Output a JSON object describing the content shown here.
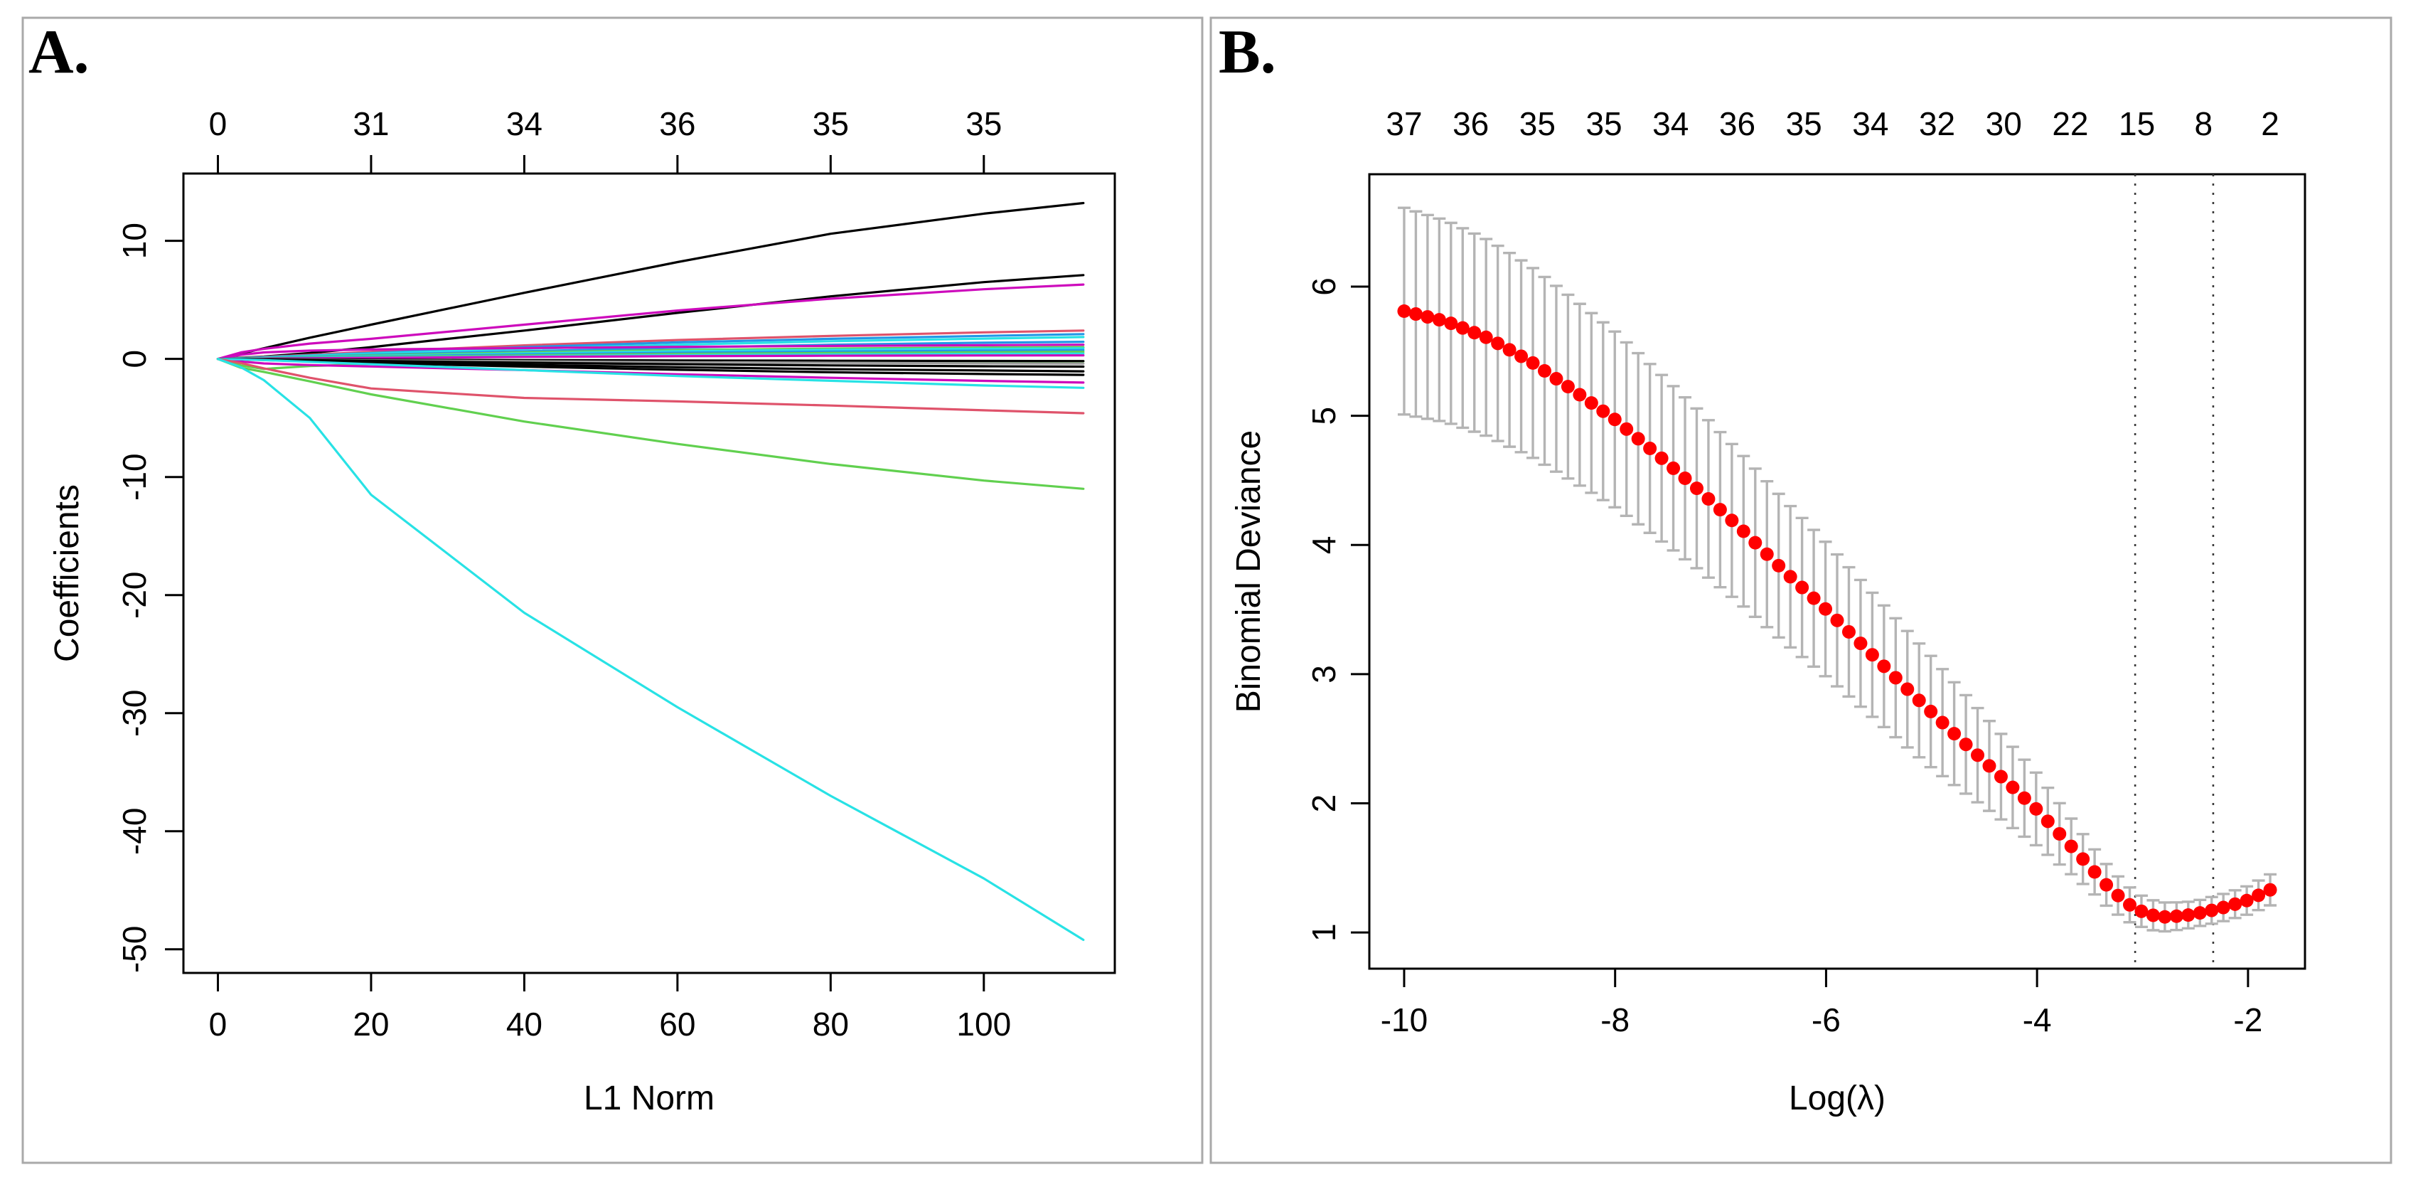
{
  "figure": {
    "background": "#ffffff",
    "panel_border_color": "#a9a9a9",
    "panels": [
      {
        "label": "A."
      },
      {
        "label": "B."
      }
    ]
  },
  "palette": {
    "black": "#000000",
    "salmon": "#DF536B",
    "green": "#61D04F",
    "blue": "#2297E6",
    "cyan": "#28E2E5",
    "magenta": "#CD0BBC",
    "gray": "#9E9E9E",
    "axis": "#000000",
    "errorbar": "#B4B4B4",
    "cv_dot": "#FF0000",
    "dotted_line": "#3a3a3a"
  },
  "chart_data": [
    {
      "type": "line",
      "panel": "A",
      "title": "",
      "xlabel": "L1 Norm",
      "ylabel": "Coefficients",
      "xlim": [
        -4.5,
        117.1
      ],
      "ylim": [
        -52.0,
        15.7
      ],
      "x_ticks": [
        0,
        20,
        40,
        60,
        80,
        100
      ],
      "y_ticks": [
        10,
        0,
        -10,
        -20,
        -30,
        -40,
        -50
      ],
      "top_axis_labels": [
        "0",
        "31",
        "34",
        "36",
        "35",
        "35"
      ],
      "top_axis_positions": [
        0,
        20,
        40,
        60,
        80,
        100
      ],
      "grid": false,
      "x_anchors": [
        0,
        3,
        6,
        12,
        20,
        40,
        60,
        80,
        100,
        113
      ],
      "series": [
        {
          "name": "coef-1",
          "color": "black",
          "values": [
            0,
            0.45,
            0.9,
            1.8,
            2.9,
            5.6,
            8.2,
            10.6,
            12.3,
            13.2
          ]
        },
        {
          "name": "coef-2",
          "color": "black",
          "values": [
            0,
            0.1,
            0.2,
            0.5,
            1.0,
            2.4,
            3.9,
            5.3,
            6.5,
            7.1
          ]
        },
        {
          "name": "coef-3",
          "color": "magenta",
          "values": [
            0,
            0.55,
            0.85,
            1.3,
            1.7,
            2.9,
            4.1,
            5.1,
            5.9,
            6.3
          ]
        },
        {
          "name": "coef-4",
          "color": "salmon",
          "values": [
            0,
            0.08,
            0.18,
            0.35,
            0.6,
            1.15,
            1.6,
            1.95,
            2.25,
            2.4
          ]
        },
        {
          "name": "coef-5",
          "color": "blue",
          "values": [
            0,
            0.06,
            0.14,
            0.3,
            0.5,
            1.0,
            1.4,
            1.7,
            1.95,
            2.1
          ]
        },
        {
          "name": "coef-6",
          "color": "cyan",
          "values": [
            0,
            0.05,
            0.12,
            0.26,
            0.45,
            0.85,
            1.2,
            1.5,
            1.72,
            1.85
          ]
        },
        {
          "name": "coef-7",
          "color": "blue",
          "values": [
            0,
            0.04,
            0.1,
            0.2,
            0.35,
            0.65,
            0.95,
            1.2,
            1.37,
            1.45
          ]
        },
        {
          "name": "coef-8",
          "color": "magenta",
          "values": [
            0,
            0.35,
            0.55,
            0.7,
            0.8,
            0.92,
            1.02,
            1.1,
            1.16,
            1.2
          ]
        },
        {
          "name": "coef-9",
          "color": "green",
          "values": [
            0,
            0.03,
            0.08,
            0.17,
            0.3,
            0.55,
            0.75,
            0.88,
            0.96,
            1.0
          ]
        },
        {
          "name": "coef-10",
          "color": "cyan",
          "values": [
            0,
            0.02,
            0.06,
            0.14,
            0.25,
            0.47,
            0.65,
            0.78,
            0.86,
            0.9
          ]
        },
        {
          "name": "coef-11",
          "color": "blue",
          "values": [
            0,
            0.02,
            0.05,
            0.12,
            0.2,
            0.38,
            0.52,
            0.62,
            0.7,
            0.75
          ]
        },
        {
          "name": "coef-12",
          "color": "green",
          "values": [
            0,
            0.01,
            0.04,
            0.09,
            0.16,
            0.3,
            0.42,
            0.5,
            0.56,
            0.6
          ]
        },
        {
          "name": "coef-13",
          "color": "cyan",
          "values": [
            0,
            0.01,
            0.03,
            0.07,
            0.12,
            0.23,
            0.32,
            0.38,
            0.43,
            0.45
          ]
        },
        {
          "name": "coef-14",
          "color": "magenta",
          "values": [
            0,
            0,
            0.02,
            0.05,
            0.09,
            0.17,
            0.23,
            0.27,
            0.29,
            0.3
          ]
        },
        {
          "name": "coef-15",
          "color": "green",
          "values": [
            0,
            -0.55,
            -0.85,
            -0.6,
            -0.45,
            -0.3,
            -0.25,
            -0.22,
            -0.21,
            -0.2
          ]
        },
        {
          "name": "coef-16",
          "color": "black",
          "values": [
            0,
            0,
            -0.01,
            -0.03,
            -0.06,
            -0.1,
            -0.13,
            -0.15,
            -0.17,
            -0.18
          ]
        },
        {
          "name": "coef-17",
          "color": "gray",
          "values": [
            0,
            -0.01,
            -0.03,
            -0.07,
            -0.12,
            -0.2,
            -0.28,
            -0.33,
            -0.37,
            -0.4
          ]
        },
        {
          "name": "coef-18",
          "color": "black",
          "values": [
            0,
            -0.02,
            -0.05,
            -0.1,
            -0.17,
            -0.32,
            -0.45,
            -0.55,
            -0.62,
            -0.65
          ]
        },
        {
          "name": "coef-19",
          "color": "black",
          "values": [
            0,
            -0.03,
            -0.07,
            -0.15,
            -0.26,
            -0.5,
            -0.7,
            -0.87,
            -0.98,
            -1.05
          ]
        },
        {
          "name": "coef-20",
          "color": "black",
          "values": [
            0,
            -0.04,
            -0.09,
            -0.2,
            -0.34,
            -0.65,
            -0.92,
            -1.13,
            -1.28,
            -1.35
          ]
        },
        {
          "name": "coef-21",
          "color": "magenta",
          "values": [
            0,
            -0.22,
            -0.38,
            -0.52,
            -0.64,
            -0.95,
            -1.3,
            -1.6,
            -1.86,
            -2.0
          ]
        },
        {
          "name": "coef-22",
          "color": "cyan",
          "values": [
            0,
            -0.04,
            -0.1,
            -0.25,
            -0.45,
            -0.95,
            -1.45,
            -1.85,
            -2.25,
            -2.45
          ]
        },
        {
          "name": "coef-23",
          "color": "salmon",
          "values": [
            0,
            -0.35,
            -0.8,
            -1.6,
            -2.5,
            -3.3,
            -3.6,
            -3.95,
            -4.35,
            -4.6
          ]
        },
        {
          "name": "coef-24",
          "color": "green",
          "values": [
            0,
            -0.75,
            -1.1,
            -1.9,
            -3.0,
            -5.3,
            -7.2,
            -8.9,
            -10.3,
            -11.0
          ]
        },
        {
          "name": "coef-25",
          "color": "cyan",
          "values": [
            0,
            -0.7,
            -1.8,
            -5.0,
            -11.5,
            -21.5,
            -29.5,
            -37.0,
            -44.0,
            -49.2
          ]
        }
      ]
    },
    {
      "type": "scatter",
      "panel": "B",
      "title": "",
      "xlabel": "Log(λ)",
      "ylabel": "Binomial Deviance",
      "xlim": [
        -10.33,
        -1.46
      ],
      "ylim": [
        0.72,
        6.87
      ],
      "x_ticks": [
        -10,
        -8,
        -6,
        -4,
        -2
      ],
      "y_ticks": [
        1,
        2,
        3,
        4,
        5,
        6
      ],
      "top_axis_labels": [
        "37",
        "36",
        "35",
        "35",
        "34",
        "36",
        "35",
        "34",
        "32",
        "30",
        "22",
        "15",
        "8",
        "2"
      ],
      "grid": false,
      "n_points": 75,
      "x_range": [
        -10,
        -1.79
      ],
      "mean_anchors": [
        [
          -10,
          5.81
        ],
        [
          -9.6,
          5.73
        ],
        [
          -9.2,
          5.6
        ],
        [
          -8.8,
          5.42
        ],
        [
          -8.4,
          5.2
        ],
        [
          -8.0,
          4.97
        ],
        [
          -7.6,
          4.7
        ],
        [
          -7.2,
          4.42
        ],
        [
          -6.8,
          4.12
        ],
        [
          -6.4,
          3.8
        ],
        [
          -6.0,
          3.5
        ],
        [
          -5.6,
          3.18
        ],
        [
          -5.2,
          2.86
        ],
        [
          -4.8,
          2.55
        ],
        [
          -4.4,
          2.25
        ],
        [
          -4.0,
          1.95
        ],
        [
          -3.6,
          1.6
        ],
        [
          -3.3,
          1.33
        ],
        [
          -3.1,
          1.2
        ],
        [
          -2.95,
          1.14
        ],
        [
          -2.8,
          1.12
        ],
        [
          -2.6,
          1.13
        ],
        [
          -2.4,
          1.16
        ],
        [
          -2.2,
          1.2
        ],
        [
          -2.0,
          1.25
        ],
        [
          -1.79,
          1.33
        ]
      ],
      "sd_anchors": [
        [
          -10,
          0.8
        ],
        [
          -9,
          0.75
        ],
        [
          -8,
          0.68
        ],
        [
          -7,
          0.6
        ],
        [
          -6,
          0.52
        ],
        [
          -5,
          0.43
        ],
        [
          -4,
          0.28
        ],
        [
          -3.5,
          0.18
        ],
        [
          -3,
          0.12
        ],
        [
          -2.5,
          0.1
        ],
        [
          -2,
          0.11
        ],
        [
          -1.79,
          0.12
        ]
      ],
      "vlines": [
        -3.07,
        -2.33
      ],
      "legend": null
    }
  ]
}
